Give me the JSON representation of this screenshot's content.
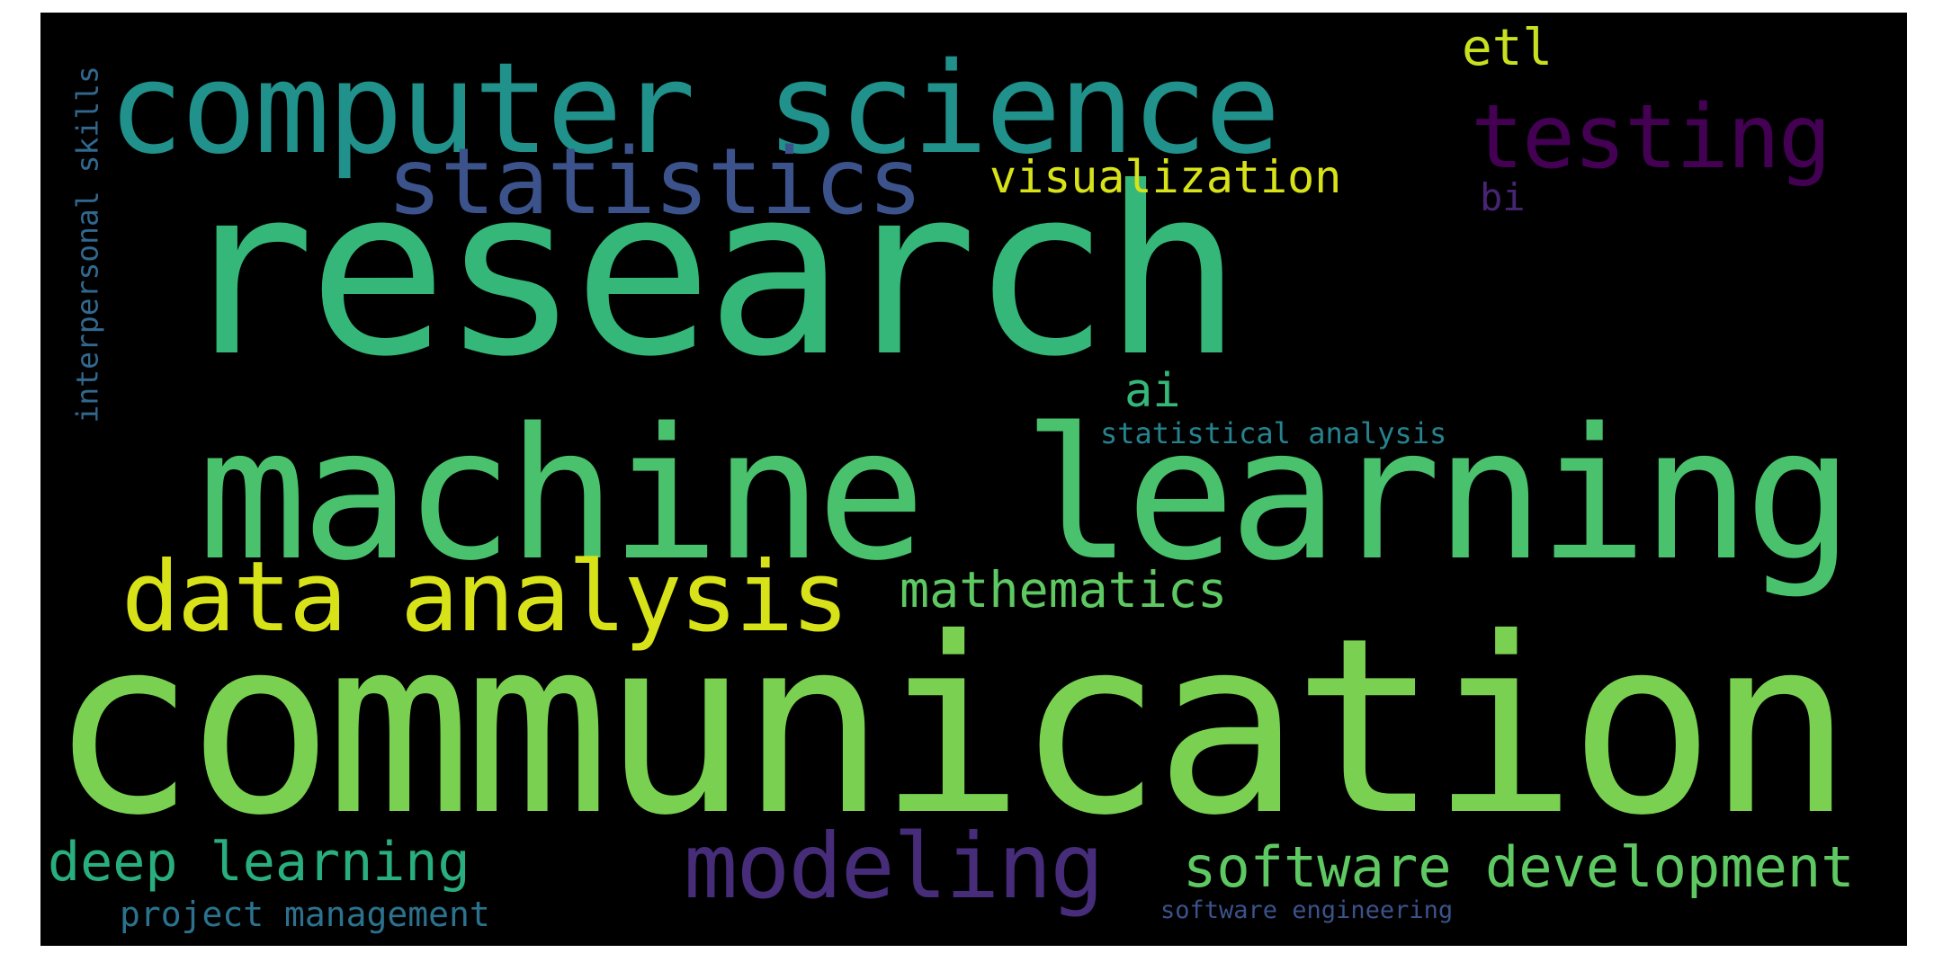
{
  "wordcloud": {
    "background": "#000000",
    "words": {
      "research": {
        "text": "research",
        "color": "#35b779"
      },
      "communication": {
        "text": "communication",
        "color": "#7ad151"
      },
      "machine_learning": {
        "text": "machine learning",
        "color": "#4ac16d"
      },
      "computer_science": {
        "text": "computer science",
        "color": "#21918c"
      },
      "data_analysis": {
        "text": "data analysis",
        "color": "#d8e219"
      },
      "statistics": {
        "text": "statistics",
        "color": "#3b528b"
      },
      "testing": {
        "text": "testing",
        "color": "#440154"
      },
      "modeling": {
        "text": "modeling",
        "color": "#472c7a"
      },
      "software_development": {
        "text": "software development",
        "color": "#5ec962"
      },
      "deep_learning": {
        "text": "deep learning",
        "color": "#29af7f"
      },
      "mathematics": {
        "text": "mathematics",
        "color": "#5ec962"
      },
      "visualization": {
        "text": "visualization",
        "color": "#d8e219"
      },
      "etl": {
        "text": "etl",
        "color": "#c8e020"
      },
      "ai": {
        "text": "ai",
        "color": "#35b779"
      },
      "bi": {
        "text": "bi",
        "color": "#482475"
      },
      "statistical_analysis": {
        "text": "statistical analysis",
        "color": "#26828e"
      },
      "project_management": {
        "text": "project management",
        "color": "#2c728e"
      },
      "software_engineering": {
        "text": "software engineering",
        "color": "#3b528b"
      },
      "interpersonal_skills": {
        "text": "interpersonal skills",
        "color": "#31688e"
      }
    }
  }
}
